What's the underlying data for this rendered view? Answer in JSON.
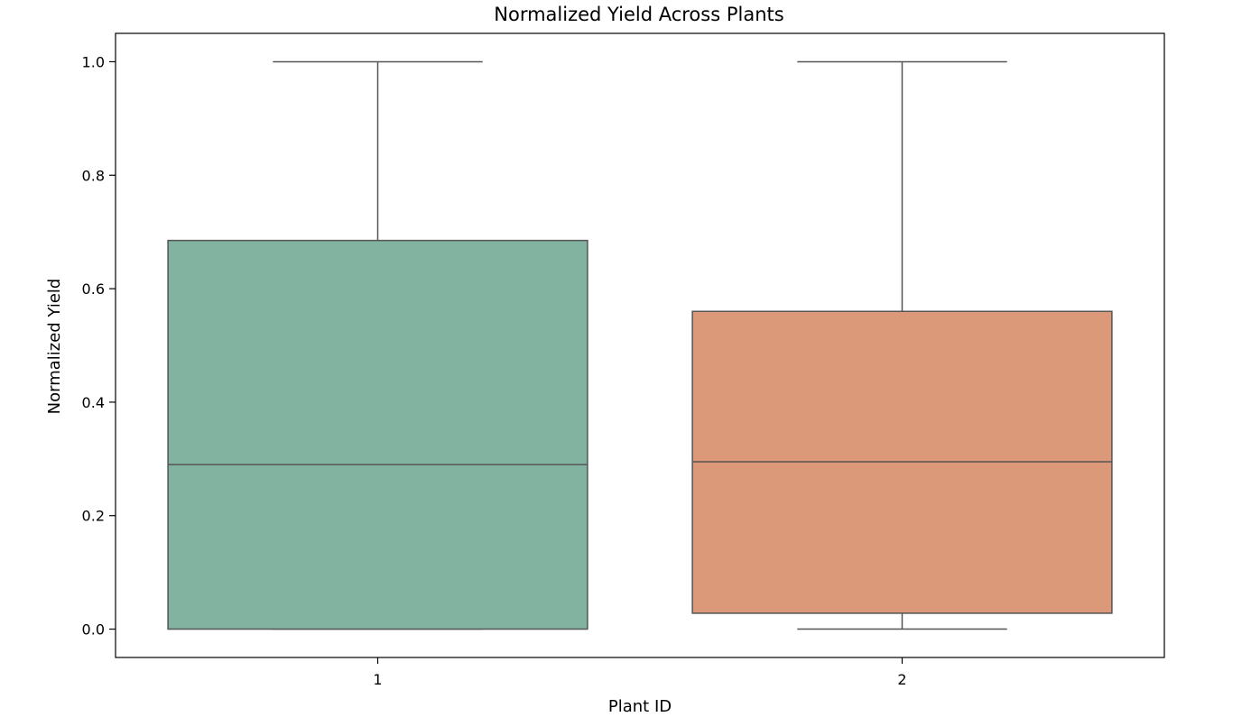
{
  "chart_data": {
    "type": "box",
    "title": "Normalized Yield Across Plants",
    "xlabel": "Plant ID",
    "ylabel": "Normalized Yield",
    "categories": [
      "1",
      "2"
    ],
    "ylim": [
      -0.05,
      1.05
    ],
    "yticks": [
      0.0,
      0.2,
      0.4,
      0.6,
      0.8,
      1.0
    ],
    "ytick_labels": [
      "0.0",
      "0.2",
      "0.4",
      "0.6",
      "0.8",
      "1.0"
    ],
    "grid": false,
    "boxes": [
      {
        "category": "1",
        "whisker_low": 0.0,
        "q1": 0.0,
        "median": 0.29,
        "q3": 0.685,
        "whisker_high": 1.0,
        "color": "#82b3a0"
      },
      {
        "category": "2",
        "whisker_low": 0.0,
        "q1": 0.028,
        "median": 0.295,
        "q3": 0.56,
        "whisker_high": 1.0,
        "color": "#dc997a"
      }
    ],
    "line_color": "#555555"
  }
}
